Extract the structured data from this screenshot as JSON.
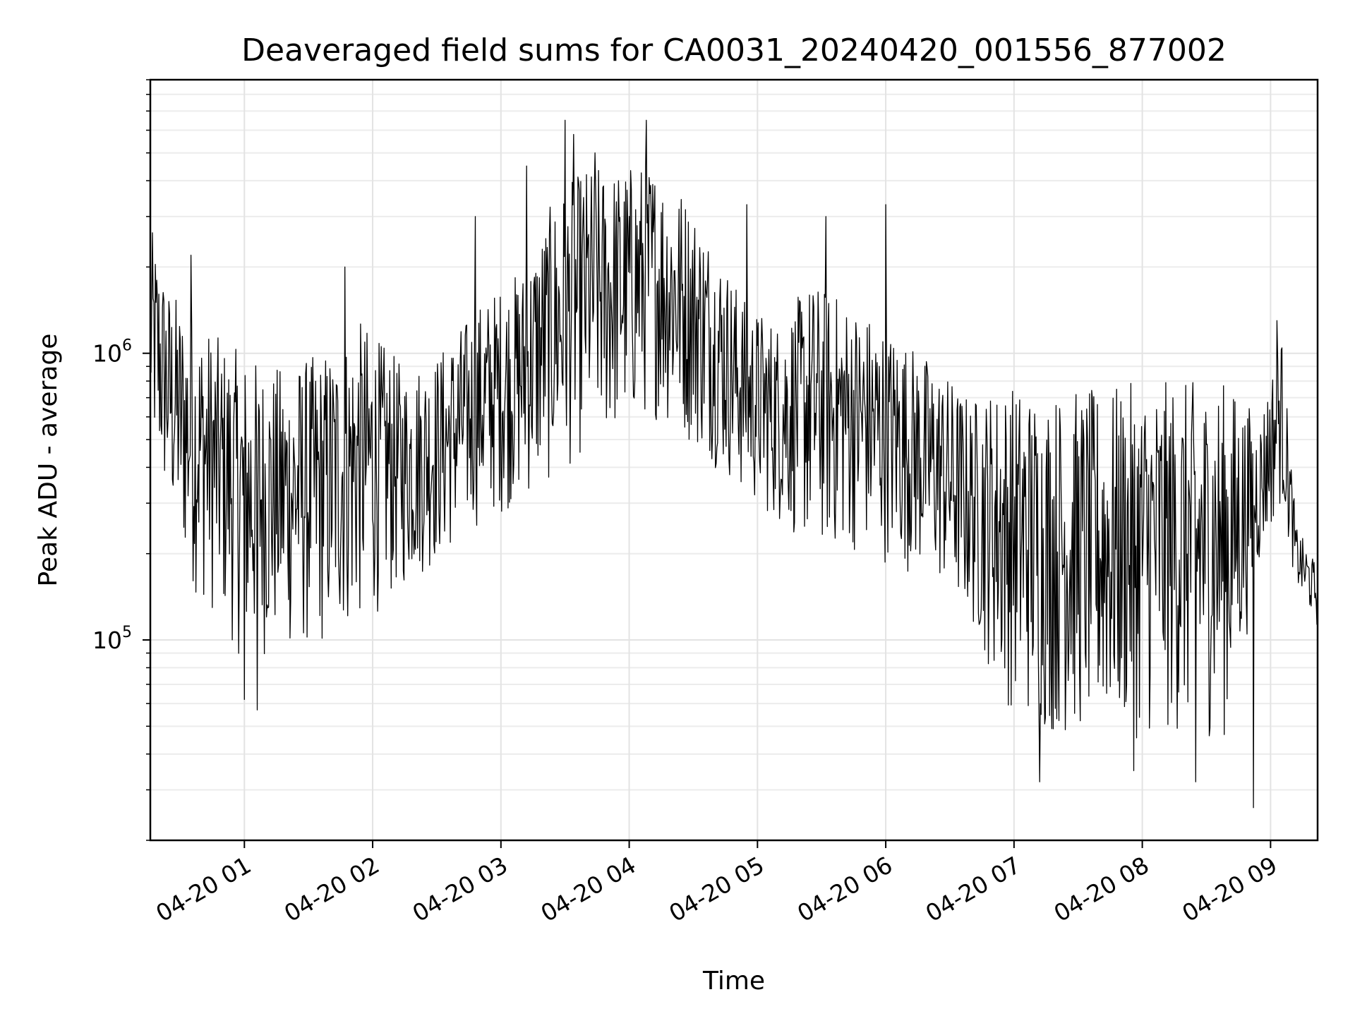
{
  "chart_data": {
    "type": "line",
    "title": "Deaveraged field sums for CA0031_20240420_001556_877002",
    "xlabel": "Time",
    "ylabel": "Peak ADU - average",
    "x_range": [
      "2024-04-20 00:16",
      "2024-04-20 09:22"
    ],
    "ylim": [
      20000,
      9000000
    ],
    "yscale": "log",
    "grid": true,
    "x_ticks": [
      {
        "value": "2024-04-20 01:00",
        "label": "04-20 01"
      },
      {
        "value": "2024-04-20 02:00",
        "label": "04-20 02"
      },
      {
        "value": "2024-04-20 03:00",
        "label": "04-20 03"
      },
      {
        "value": "2024-04-20 04:00",
        "label": "04-20 04"
      },
      {
        "value": "2024-04-20 05:00",
        "label": "04-20 05"
      },
      {
        "value": "2024-04-20 06:00",
        "label": "04-20 06"
      },
      {
        "value": "2024-04-20 07:00",
        "label": "04-20 07"
      },
      {
        "value": "2024-04-20 08:00",
        "label": "04-20 08"
      },
      {
        "value": "2024-04-20 09:00",
        "label": "04-20 09"
      }
    ],
    "y_ticks": [
      {
        "value": 100000,
        "base": "10",
        "exp": "5"
      },
      {
        "value": 1000000,
        "base": "10",
        "exp": "6"
      }
    ],
    "series": [
      {
        "color": "#000000",
        "envelope": [
          {
            "time": "2024-04-20 00:16",
            "low": 450000,
            "high": 2800000
          },
          {
            "time": "2024-04-20 00:25",
            "low": 250000,
            "high": 1700000
          },
          {
            "time": "2024-04-20 00:35",
            "low": 150000,
            "high": 1400000
          },
          {
            "time": "2024-04-20 00:50",
            "low": 110000,
            "high": 1100000
          },
          {
            "time": "2024-04-20 01:00",
            "low": 80000,
            "high": 1000000
          },
          {
            "time": "2024-04-20 01:15",
            "low": 90000,
            "high": 900000
          },
          {
            "time": "2024-04-20 01:35",
            "low": 90000,
            "high": 1000000
          },
          {
            "time": "2024-04-20 01:55",
            "low": 110000,
            "high": 1300000
          },
          {
            "time": "2024-04-20 02:15",
            "low": 150000,
            "high": 900000
          },
          {
            "time": "2024-04-20 02:30",
            "low": 180000,
            "high": 1000000
          },
          {
            "time": "2024-04-20 02:50",
            "low": 250000,
            "high": 1500000
          },
          {
            "time": "2024-04-20 03:10",
            "low": 300000,
            "high": 2000000
          },
          {
            "time": "2024-04-20 03:25",
            "low": 350000,
            "high": 3500000
          },
          {
            "time": "2024-04-20 03:40",
            "low": 450000,
            "high": 4500000
          },
          {
            "time": "2024-04-20 03:55",
            "low": 500000,
            "high": 4500000
          },
          {
            "time": "2024-04-20 04:10",
            "low": 600000,
            "high": 4800000
          },
          {
            "time": "2024-04-20 04:25",
            "low": 500000,
            "high": 3800000
          },
          {
            "time": "2024-04-20 04:40",
            "low": 400000,
            "high": 2500000
          },
          {
            "time": "2024-04-20 04:55",
            "low": 300000,
            "high": 1500000
          },
          {
            "time": "2024-04-20 05:10",
            "low": 250000,
            "high": 1300000
          },
          {
            "time": "2024-04-20 05:25",
            "low": 200000,
            "high": 1800000
          },
          {
            "time": "2024-04-20 05:45",
            "low": 200000,
            "high": 1500000
          },
          {
            "time": "2024-04-20 06:05",
            "low": 180000,
            "high": 1200000
          },
          {
            "time": "2024-04-20 06:25",
            "low": 150000,
            "high": 900000
          },
          {
            "time": "2024-04-20 06:40",
            "low": 110000,
            "high": 700000
          },
          {
            "time": "2024-04-20 06:55",
            "low": 60000,
            "high": 800000
          },
          {
            "time": "2024-04-20 07:15",
            "low": 45000,
            "high": 750000
          },
          {
            "time": "2024-04-20 07:40",
            "low": 45000,
            "high": 750000
          },
          {
            "time": "2024-04-20 08:00",
            "low": 45000,
            "high": 800000
          },
          {
            "time": "2024-04-20 08:20",
            "low": 45000,
            "high": 800000
          },
          {
            "time": "2024-04-20 08:40",
            "low": 45000,
            "high": 800000
          },
          {
            "time": "2024-04-20 08:55",
            "low": 180000,
            "high": 600000
          },
          {
            "time": "2024-04-20 09:05",
            "low": 300000,
            "high": 1200000
          },
          {
            "time": "2024-04-20 09:12",
            "low": 150000,
            "high": 250000
          },
          {
            "time": "2024-04-20 09:22",
            "low": 110000,
            "high": 180000
          }
        ],
        "spikes": [
          {
            "time": "2024-04-20 03:30",
            "value": 6500000
          },
          {
            "time": "2024-04-20 04:08",
            "value": 6500000
          },
          {
            "time": "2024-04-20 03:34",
            "value": 5800000
          },
          {
            "time": "2024-04-20 03:44",
            "value": 5000000
          },
          {
            "time": "2024-04-20 02:48",
            "value": 3000000
          },
          {
            "time": "2024-04-20 03:12",
            "value": 4500000
          },
          {
            "time": "2024-04-20 05:32",
            "value": 3000000
          },
          {
            "time": "2024-04-20 06:00",
            "value": 3300000
          },
          {
            "time": "2024-04-20 04:55",
            "value": 3300000
          },
          {
            "time": "2024-04-20 00:35",
            "value": 2200000
          },
          {
            "time": "2024-04-20 01:47",
            "value": 2000000
          },
          {
            "time": "2024-04-20 01:06",
            "value": 57000
          },
          {
            "time": "2024-04-20 01:00",
            "value": 62000
          },
          {
            "time": "2024-04-20 07:12",
            "value": 32000
          },
          {
            "time": "2024-04-20 08:52",
            "value": 26000
          },
          {
            "time": "2024-04-20 08:25",
            "value": 32000
          },
          {
            "time": "2024-04-20 07:56",
            "value": 35000
          },
          {
            "time": "2024-04-20 09:03",
            "value": 1300000
          }
        ]
      }
    ]
  }
}
